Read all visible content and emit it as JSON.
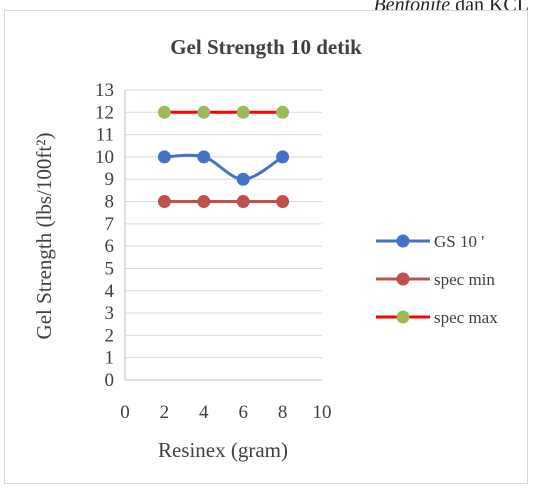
{
  "page_fragment": {
    "italic_part": "Bentonite",
    "rest": " dan KCL"
  },
  "chart_data": {
    "type": "line",
    "title": "Gel Strength 10 detik",
    "xlabel": "Resinex (gram)",
    "ylabel": "Gel Strength (lbs/100ft²)",
    "xlim": [
      0,
      10
    ],
    "ylim": [
      0,
      13
    ],
    "x_ticks": [
      0,
      2,
      4,
      6,
      8,
      10
    ],
    "y_ticks": [
      0,
      1,
      2,
      3,
      4,
      5,
      6,
      7,
      8,
      9,
      10,
      11,
      12,
      13
    ],
    "grid": "horizontal",
    "legend_position": "right",
    "series": [
      {
        "name": "GS 10 '",
        "x": [
          2,
          4,
          6,
          8
        ],
        "values": [
          10,
          10,
          9,
          10
        ],
        "line_color": "#4472c4",
        "marker_color": "#4472c4",
        "smooth": true
      },
      {
        "name": "spec min",
        "x": [
          2,
          4,
          6,
          8
        ],
        "values": [
          8,
          8,
          8,
          8
        ],
        "line_color": "#c0504d",
        "marker_color": "#c0504d",
        "smooth": false
      },
      {
        "name": "spec max",
        "x": [
          2,
          4,
          6,
          8
        ],
        "values": [
          12,
          12,
          12,
          12
        ],
        "line_color": "#ff0000",
        "marker_color": "#9bbb59",
        "smooth": false
      }
    ]
  }
}
